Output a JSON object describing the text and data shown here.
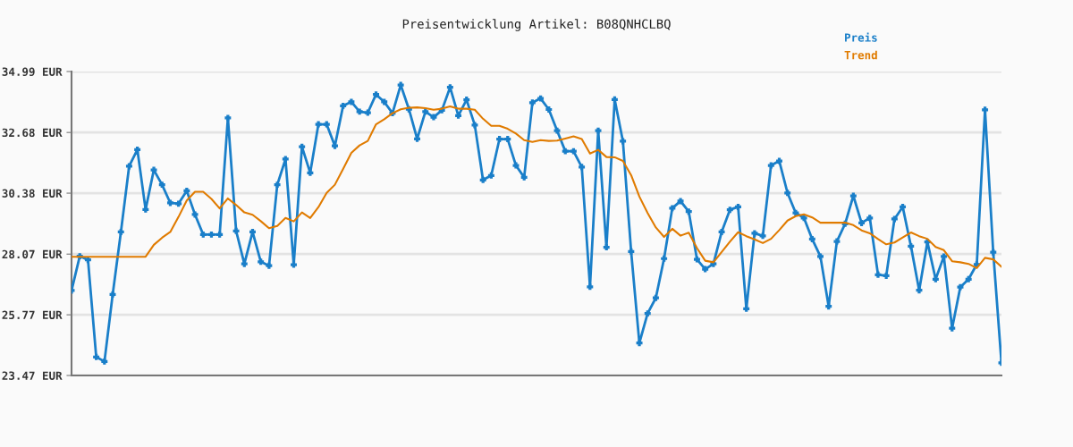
{
  "chart_data": {
    "type": "line",
    "title": "Preisentwicklung Artikel: B08QNHCLBQ",
    "categories": [
      null,
      null,
      null,
      null,
      null,
      null,
      null,
      null,
      null,
      null,
      null,
      null,
      null,
      null,
      null,
      null,
      null,
      null,
      null,
      null,
      null,
      null,
      null,
      null,
      null,
      null,
      null,
      null,
      null,
      null,
      null,
      null,
      null,
      null,
      null,
      null,
      null,
      null,
      null,
      null,
      null,
      null,
      null,
      null,
      null,
      null,
      null,
      null,
      null,
      null,
      null,
      null,
      null,
      null,
      null,
      null,
      null,
      null,
      null,
      null,
      null,
      null,
      null,
      null,
      null,
      null,
      null,
      null,
      null,
      null,
      null,
      null,
      null,
      null,
      null,
      null,
      null,
      null,
      null,
      null,
      null,
      null,
      null,
      null,
      null,
      null,
      null,
      null,
      null,
      null,
      null,
      null,
      null,
      null,
      null,
      null,
      null,
      null,
      null,
      null,
      null,
      null,
      null,
      null,
      null,
      null,
      null,
      null,
      null,
      null,
      null,
      null,
      null,
      null
    ],
    "series": [
      {
        "name": "Preis",
        "color": "#1a7fc9",
        "marker": "cross",
        "values": [
          26.69,
          27.99,
          27.85,
          24.17,
          24.0,
          26.54,
          28.91,
          31.4,
          32.03,
          29.76,
          31.26,
          30.7,
          30.01,
          29.98,
          30.47,
          29.57,
          28.81,
          28.81,
          28.81,
          33.23,
          28.95,
          27.7,
          28.91,
          27.78,
          27.63,
          30.7,
          31.67,
          27.67,
          32.14,
          31.15,
          32.99,
          32.99,
          32.17,
          33.69,
          33.84,
          33.47,
          33.43,
          34.12,
          33.84,
          33.41,
          34.48,
          33.56,
          32.44,
          33.47,
          33.26,
          33.52,
          34.39,
          33.32,
          33.92,
          32.96,
          30.88,
          31.05,
          32.43,
          32.43,
          31.43,
          30.98,
          33.81,
          33.97,
          33.55,
          32.75,
          31.97,
          31.97,
          31.37,
          26.83,
          32.75,
          28.33,
          33.93,
          32.35,
          28.17,
          24.7,
          25.82,
          26.41,
          27.9,
          29.81,
          30.08,
          29.68,
          27.87,
          27.5,
          27.7,
          28.91,
          29.75,
          29.86,
          26.0,
          28.86,
          28.76,
          31.43,
          31.6,
          30.39,
          29.63,
          29.44,
          28.64,
          27.98,
          26.09,
          28.55,
          29.22,
          30.28,
          29.25,
          29.44,
          27.29,
          27.25,
          29.4,
          29.86,
          28.37,
          26.7,
          28.53,
          27.12,
          27.98,
          25.26,
          26.82,
          27.12,
          27.68,
          33.54,
          28.14,
          23.95
        ]
      },
      {
        "name": "Trend",
        "color": "#e07b00",
        "marker": "none",
        "values": [
          27.97,
          27.97,
          27.97,
          27.97,
          27.97,
          27.97,
          27.97,
          27.97,
          27.97,
          27.97,
          28.42,
          28.69,
          28.91,
          29.48,
          30.1,
          30.43,
          30.43,
          30.16,
          29.8,
          30.18,
          29.93,
          29.65,
          29.56,
          29.32,
          29.05,
          29.14,
          29.44,
          29.31,
          29.65,
          29.44,
          29.85,
          30.39,
          30.7,
          31.3,
          31.91,
          32.19,
          32.36,
          32.99,
          33.18,
          33.41,
          33.56,
          33.62,
          33.63,
          33.6,
          33.54,
          33.58,
          33.67,
          33.58,
          33.58,
          33.54,
          33.2,
          32.93,
          32.93,
          32.82,
          32.64,
          32.39,
          32.32,
          32.39,
          32.36,
          32.37,
          32.45,
          32.53,
          32.43,
          31.88,
          32.02,
          31.75,
          31.74,
          31.6,
          31.06,
          30.25,
          29.63,
          29.08,
          28.72,
          29.03,
          28.77,
          28.88,
          28.3,
          27.82,
          27.76,
          28.15,
          28.54,
          28.9,
          28.75,
          28.63,
          28.49,
          28.65,
          28.98,
          29.34,
          29.51,
          29.58,
          29.46,
          29.26,
          29.26,
          29.26,
          29.26,
          29.17,
          28.97,
          28.86,
          28.64,
          28.44,
          28.51,
          28.7,
          28.89,
          28.75,
          28.65,
          28.34,
          28.22,
          27.8,
          27.76,
          27.7,
          27.54,
          27.93,
          27.87,
          27.59
        ]
      }
    ],
    "ylim": [
      23.47,
      34.99
    ],
    "yticks": [
      {
        "value": 23.47,
        "label": "23.47 EUR"
      },
      {
        "value": 25.77,
        "label": "25.77 EUR"
      },
      {
        "value": 28.07,
        "label": "28.07 EUR"
      },
      {
        "value": 30.38,
        "label": "30.38 EUR"
      },
      {
        "value": 32.68,
        "label": "32.68 EUR"
      },
      {
        "value": 34.99,
        "label": "34.99 EUR"
      }
    ],
    "grid": "y",
    "legend": "top right",
    "tick_labels": "y",
    "line_style": "solid"
  }
}
